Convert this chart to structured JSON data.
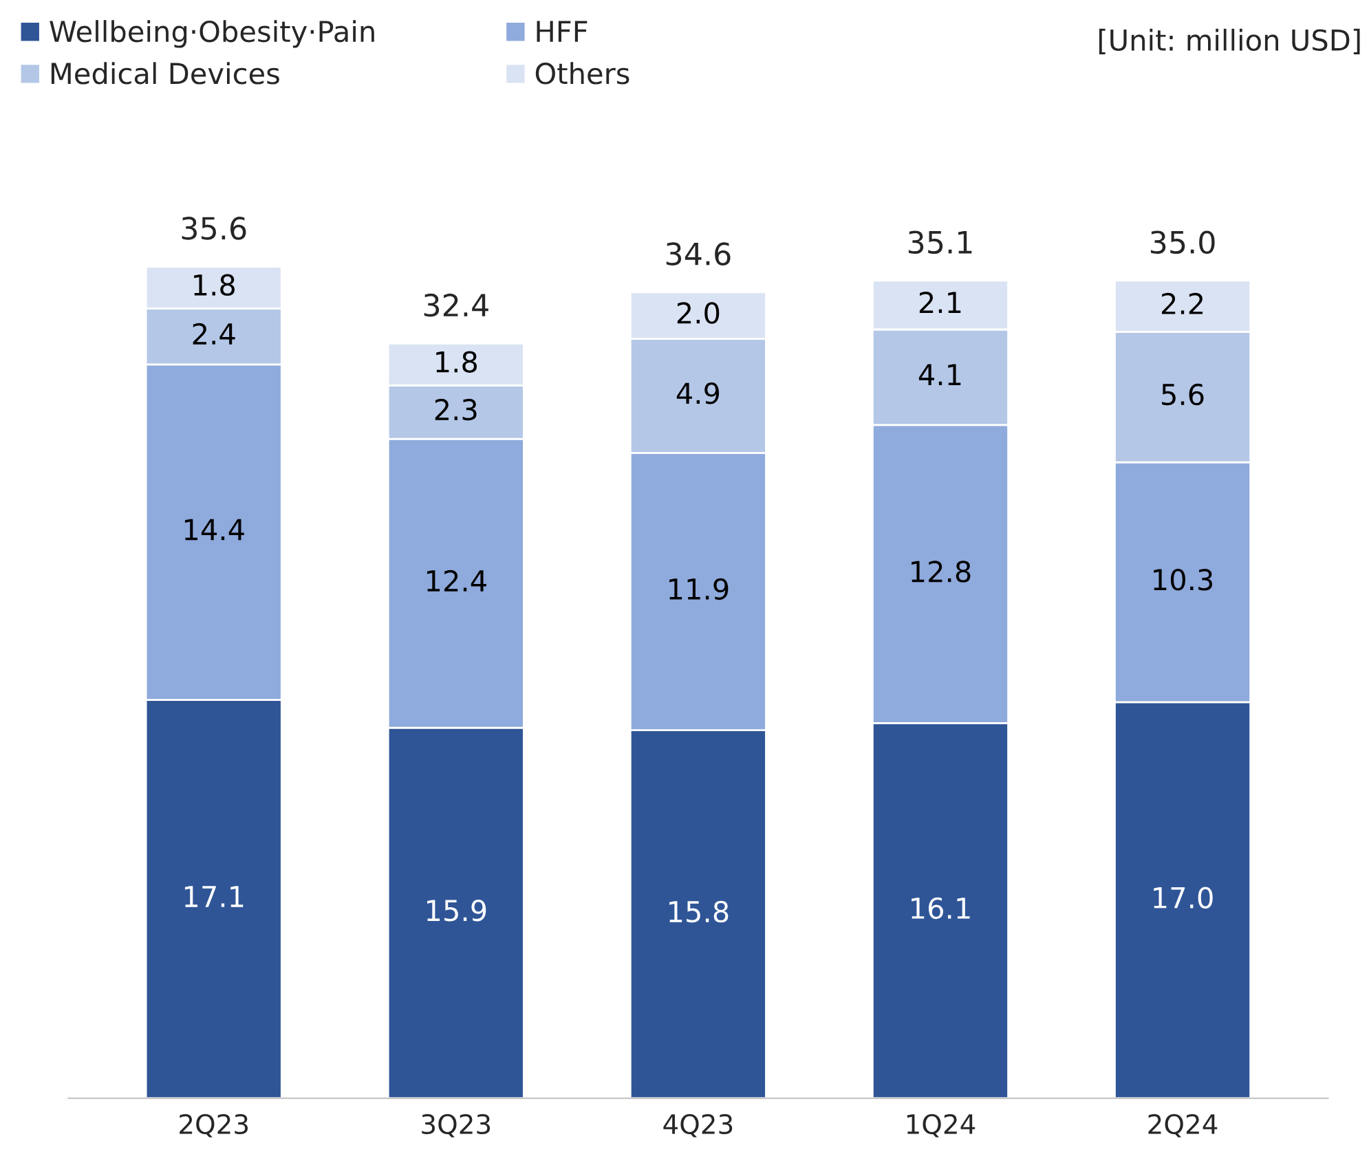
{
  "chart_data": {
    "type": "bar",
    "stacked": true,
    "categories": [
      "2Q23",
      "3Q23",
      "4Q23",
      "1Q24",
      "2Q24"
    ],
    "series": [
      {
        "name": "Wellbeing·Obesity·Pain",
        "color": "#2f5597",
        "values": [
          17.1,
          15.9,
          15.8,
          16.1,
          17.0
        ],
        "value_labels": [
          "17.1",
          "15.9",
          "15.8",
          "16.1",
          "17.0"
        ]
      },
      {
        "name": "HFF",
        "color": "#8faadc",
        "values": [
          14.4,
          12.4,
          11.9,
          12.8,
          10.3
        ],
        "value_labels": [
          "14.4",
          "12.4",
          "11.9",
          "12.8",
          "10.3"
        ]
      },
      {
        "name": "Medical Devices",
        "color": "#b4c7e7",
        "values": [
          2.4,
          2.3,
          4.9,
          4.1,
          5.6
        ],
        "value_labels": [
          "2.4",
          "2.3",
          "4.9",
          "4.1",
          "5.6"
        ]
      },
      {
        "name": "Others",
        "color": "#dae3f3",
        "values": [
          1.8,
          1.8,
          2.0,
          2.1,
          2.2
        ],
        "value_labels": [
          "1.8",
          "1.8",
          "2.0",
          "2.1",
          "2.2"
        ]
      }
    ],
    "totals": [
      "35.6",
      "32.4",
      "34.6",
      "35.1",
      "35.0"
    ],
    "legend": "top left",
    "grid": false,
    "annotations": [
      "[Unit: million USD]"
    ]
  }
}
